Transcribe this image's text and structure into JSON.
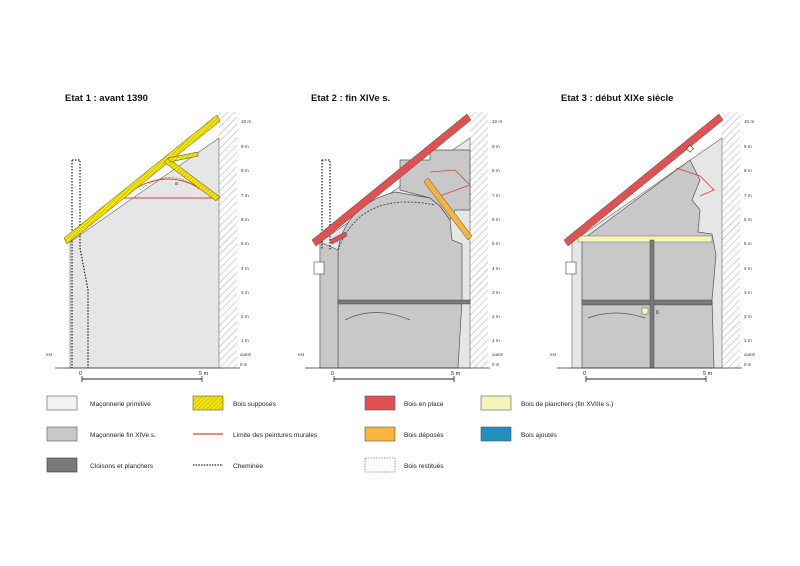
{
  "panels": [
    {
      "title": "Etat 1 : avant 1390",
      "left_label": "est",
      "right_top": "ouest",
      "right_bottom": "0 m"
    },
    {
      "title": "Etat 2 : fin XIVe s.",
      "left_label": "est",
      "right_top": "ouest",
      "right_bottom": "0 m"
    },
    {
      "title": "Etat 3 : début XIXe siècle",
      "left_label": "est",
      "right_top": "ouest",
      "right_bottom": "0 m"
    }
  ],
  "height_ticks": [
    "10 m",
    "9 m",
    "8 m",
    "7 m",
    "6 m",
    "5 m",
    "4 m",
    "3 m",
    "2 m",
    "1 m"
  ],
  "scale": {
    "start": "0",
    "end": "5 m"
  },
  "marks": {
    "a": "a",
    "b": "ß"
  },
  "legend": [
    {
      "label": "Maçonnerie primitive",
      "swatch": "#f2f2f2",
      "kind": "box"
    },
    {
      "label": "Maçonnerie fin XIVe s.",
      "swatch": "#c8c8c8",
      "kind": "box"
    },
    {
      "label": "Cloisons et planchers",
      "swatch": "#7a7a7a",
      "kind": "box"
    },
    {
      "label": "Bois supposés",
      "swatch": "#f5e400",
      "kind": "hatch"
    },
    {
      "label": "Limite des peintures murales",
      "swatch": "#d9442b",
      "kind": "line"
    },
    {
      "label": "Cheminée",
      "swatch": "#222222",
      "kind": "dotted"
    },
    {
      "label": "Bois en place",
      "swatch": "#e05252",
      "kind": "box"
    },
    {
      "label": "Bois déposés",
      "swatch": "#f8b43c",
      "kind": "box"
    },
    {
      "label": "Bois restitués",
      "swatch": "#ffffff",
      "kind": "dashed"
    },
    {
      "label": "Bois de planchers (fin XVIIIe s.)",
      "swatch": "#f4f4b8",
      "kind": "box"
    },
    {
      "label": "Bois ajoutés",
      "swatch": "#1f8fc0",
      "kind": "box"
    }
  ]
}
